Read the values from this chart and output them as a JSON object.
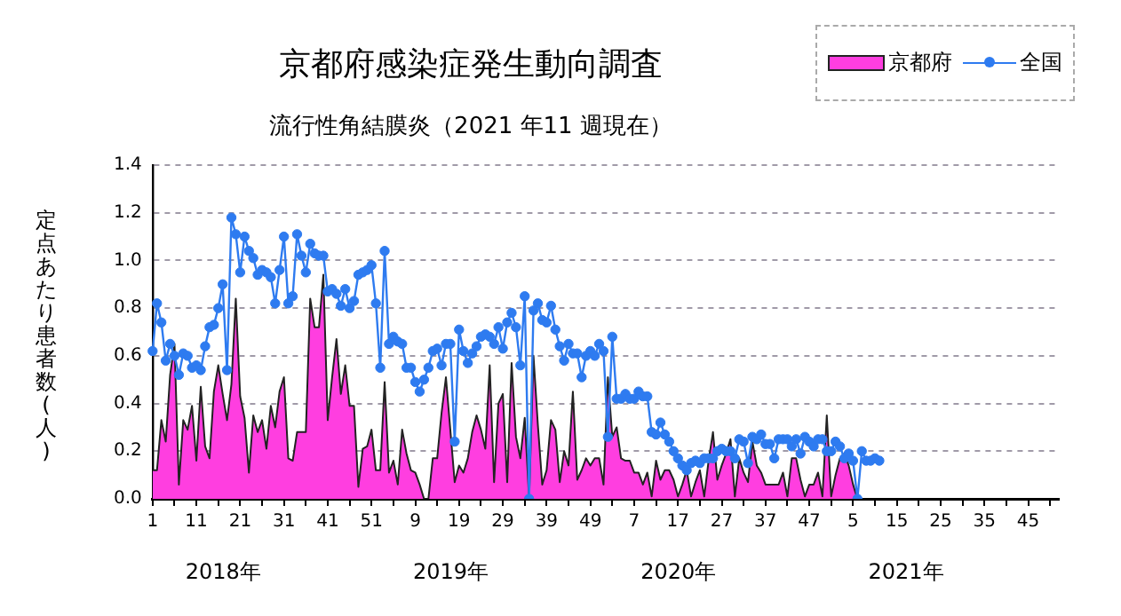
{
  "chart_data": {
    "type": "line",
    "title": "京都府感染症発生動向調査",
    "subtitle": "流行性角結膜炎（2021 年11 週現在）",
    "ylabel": "定点あたり患者数(人)",
    "annotations": [
      "2018年",
      "2019年",
      "2020年",
      "2021年"
    ],
    "categories": [
      "1",
      null,
      null,
      null,
      null,
      null,
      null,
      null,
      null,
      null,
      "11",
      null,
      null,
      null,
      null,
      null,
      null,
      null,
      null,
      null,
      "21",
      null,
      null,
      null,
      null,
      null,
      null,
      null,
      null,
      null,
      "31",
      null,
      null,
      null,
      null,
      null,
      null,
      null,
      null,
      null,
      "41",
      null,
      null,
      null,
      null,
      null,
      null,
      null,
      null,
      null,
      "51",
      null,
      null,
      null,
      null,
      null,
      null,
      null,
      null,
      null,
      "9",
      null,
      null,
      null,
      null,
      null,
      null,
      null,
      null,
      null,
      "19",
      null,
      null,
      null,
      null,
      null,
      null,
      null,
      null,
      null,
      "29",
      null,
      null,
      null,
      null,
      null,
      null,
      null,
      null,
      null,
      "39",
      null,
      null,
      null,
      null,
      null,
      null,
      null,
      null,
      null,
      "49",
      null,
      null,
      null,
      null,
      null,
      null,
      null,
      null,
      null,
      "7",
      null,
      null,
      null,
      null,
      null,
      null,
      null,
      null,
      null,
      "17",
      null,
      null,
      null,
      null,
      null,
      null,
      null,
      null,
      null,
      "27",
      null,
      null,
      null,
      null,
      null,
      null,
      null,
      null,
      null,
      "37",
      null,
      null,
      null,
      null,
      null,
      null,
      null,
      null,
      null,
      "47",
      null,
      null,
      null,
      null,
      null,
      null,
      null,
      null,
      null,
      "5",
      null,
      null,
      null,
      null,
      null,
      null,
      null,
      null,
      null,
      "15",
      null,
      null,
      null,
      null,
      null,
      null,
      null,
      null,
      null,
      "25",
      null,
      null,
      null,
      null,
      null,
      null,
      null,
      null,
      null,
      "35",
      null,
      null,
      null,
      null,
      null,
      null,
      null,
      null,
      null,
      "45",
      null,
      null,
      null,
      null,
      null,
      null,
      null
    ],
    "series": [
      {
        "name": "京都府",
        "type": "area",
        "marker": "none",
        "color": "#ff3ee0",
        "values": [
          0.12,
          0.12,
          0.33,
          0.24,
          0.52,
          0.65,
          0.06,
          0.33,
          0.29,
          0.39,
          0.16,
          0.47,
          0.22,
          0.17,
          0.45,
          0.56,
          0.44,
          0.33,
          0.48,
          0.84,
          0.43,
          0.34,
          0.11,
          0.35,
          0.28,
          0.33,
          0.21,
          0.39,
          0.3,
          0.45,
          0.51,
          0.17,
          0.16,
          0.28,
          0.28,
          0.28,
          0.84,
          0.72,
          0.72,
          0.94,
          0.33,
          0.51,
          0.67,
          0.44,
          0.56,
          0.39,
          0.39,
          0.05,
          0.21,
          0.22,
          0.29,
          0.12,
          0.12,
          0.49,
          0.11,
          0.16,
          0.06,
          0.29,
          0.19,
          0.12,
          0.11,
          0.06,
          0,
          0,
          0.17,
          0.17,
          0.36,
          0.51,
          0.29,
          0.07,
          0.14,
          0.11,
          0.17,
          0.28,
          0.35,
          0.29,
          0.21,
          0.56,
          0.07,
          0.4,
          0.44,
          0.07,
          0.57,
          0.26,
          0.17,
          0.34,
          0,
          0.6,
          0.31,
          0.06,
          0.12,
          0.33,
          0.29,
          0.07,
          0.2,
          0.14,
          0.45,
          0.08,
          0.12,
          0.17,
          0.14,
          0.17,
          0.17,
          0.06,
          0.51,
          0.26,
          0.3,
          0.17,
          0.16,
          0.16,
          0.11,
          0.11,
          0.06,
          0.11,
          0.01,
          0.16,
          0.08,
          0.12,
          0.12,
          0.08,
          0.01,
          0.06,
          0.12,
          0.01,
          0.07,
          0.12,
          0.01,
          0.16,
          0.28,
          0.08,
          0.14,
          0.19,
          0.25,
          0.01,
          0.17,
          0.11,
          0.07,
          0.24,
          0.14,
          0.11,
          0.06,
          0.06,
          0.06,
          0.06,
          0.11,
          0.01,
          0.17,
          0.17,
          0.08,
          0.01,
          0.06,
          0.06,
          0.11,
          0.01,
          0.35,
          0.01,
          0.1,
          0.17,
          0.19,
          0.14,
          0.06,
          0,
          null,
          null,
          null,
          null,
          null,
          null,
          null,
          null,
          null,
          null,
          null,
          null,
          null,
          null,
          null,
          null,
          null,
          null,
          null,
          null,
          null,
          null,
          null,
          null,
          null,
          null,
          null,
          null,
          null,
          null,
          null,
          null,
          null,
          null,
          null,
          null,
          null,
          null,
          null,
          null,
          null,
          null,
          null,
          null,
          null,
          null
        ]
      },
      {
        "name": "全国",
        "type": "line",
        "marker": "circle",
        "color": "#2e7bf0",
        "values": [
          0.62,
          0.82,
          0.74,
          0.58,
          0.65,
          0.6,
          0.52,
          0.61,
          0.6,
          0.55,
          0.56,
          0.54,
          0.64,
          0.72,
          0.73,
          0.8,
          0.9,
          0.54,
          1.18,
          1.11,
          0.95,
          1.1,
          1.04,
          1.01,
          0.94,
          0.96,
          0.95,
          0.93,
          0.82,
          0.96,
          1.1,
          0.82,
          0.85,
          1.11,
          1.02,
          0.95,
          1.07,
          1.03,
          1.02,
          1.02,
          0.87,
          0.88,
          0.86,
          0.81,
          0.88,
          0.8,
          0.83,
          0.94,
          0.95,
          0.96,
          0.98,
          0.82,
          0.55,
          1.04,
          0.65,
          0.68,
          0.66,
          0.65,
          0.55,
          0.55,
          0.49,
          0.45,
          0.5,
          0.55,
          0.62,
          0.63,
          0.56,
          0.65,
          0.65,
          0.24,
          0.71,
          0.62,
          0.57,
          0.61,
          0.64,
          0.68,
          0.69,
          0.68,
          0.65,
          0.72,
          0.63,
          0.74,
          0.78,
          0.72,
          0.56,
          0.85,
          0,
          0.79,
          0.82,
          0.75,
          0.74,
          0.81,
          0.71,
          0.64,
          0.58,
          0.65,
          0.61,
          0.61,
          0.51,
          0.6,
          0.62,
          0.6,
          0.65,
          0.62,
          0.26,
          0.68,
          0.42,
          0.42,
          0.44,
          0.42,
          0.42,
          0.45,
          0.43,
          0.43,
          0.28,
          0.27,
          0.32,
          0.27,
          0.24,
          0.2,
          0.17,
          0.14,
          0.12,
          0.15,
          0.16,
          0.15,
          0.17,
          0.17,
          0.17,
          0.2,
          0.21,
          0.2,
          0.2,
          0.17,
          0.25,
          0.24,
          0.15,
          0.26,
          0.25,
          0.27,
          0.23,
          0.23,
          0.17,
          0.25,
          0.25,
          0.25,
          0.22,
          0.25,
          0.19,
          0.26,
          0.24,
          0.22,
          0.25,
          0.25,
          0.2,
          0.2,
          0.24,
          0.22,
          0.17,
          0.19,
          0.16,
          0,
          0.2,
          0.16,
          0.16,
          0.17,
          0.16,
          null,
          null,
          null,
          null,
          null,
          null,
          null,
          null,
          null,
          null,
          null,
          null,
          null,
          null,
          null,
          null,
          null,
          null,
          null,
          null,
          null,
          null,
          null,
          null,
          null,
          null,
          null,
          null,
          null,
          null,
          null,
          null,
          null,
          null,
          null,
          null,
          null,
          null,
          null,
          null,
          null
        ]
      }
    ],
    "ylim": [
      0,
      1.4
    ],
    "yticks": [
      {
        "value": 0,
        "label": "0.0"
      },
      0.2,
      0.4,
      0.6,
      0.8,
      {
        "value": 1,
        "label": "1.0"
      },
      1.2,
      1.4
    ],
    "grid": "y",
    "legend": "top right"
  }
}
